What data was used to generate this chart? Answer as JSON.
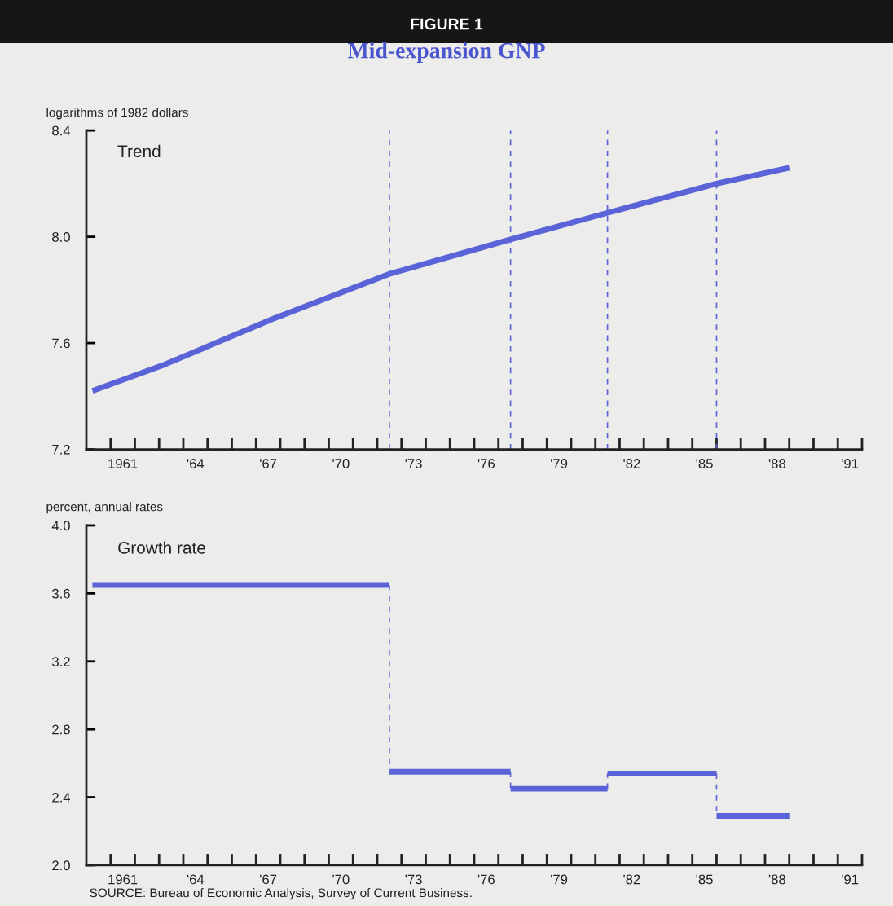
{
  "chart_data": [
    {
      "type": "line",
      "title": "Mid-expansion GNP",
      "subtitle": "Trend",
      "ylabel": "logarithms of 1982 dollars",
      "annotations": [
        "FIGURE 1"
      ],
      "series": [
        {
          "color": "#5b63d8",
          "x": [
            "1960-04",
            "1963-04",
            "1967-09",
            "1972-07",
            "1977-07",
            "1981-07",
            "1986-01",
            "1989-01"
          ],
          "values": [
            7.42,
            7.52,
            7.69,
            7.86,
            7.99,
            8.09,
            8.2,
            8.26
          ]
        }
      ],
      "xlim": [
        "1960-01-01",
        "1992-01-01"
      ],
      "xticks": [
        {
          "value": "1961-01-01",
          "label": null
        },
        {
          "value": "1961-07-01",
          "label": "1961"
        },
        {
          "value": "1962-01-01",
          "label": null
        },
        {
          "value": "1963-01-01",
          "label": null
        },
        {
          "value": "1964-01-01",
          "label": null
        },
        {
          "value": "1964-07-01",
          "label": "'64"
        },
        {
          "value": "1965-01-01",
          "label": null
        },
        {
          "value": "1966-01-01",
          "label": null
        },
        {
          "value": "1967-01-01",
          "label": null
        },
        {
          "value": "1967-07-01",
          "label": "'67"
        },
        {
          "value": "1968-01-01",
          "label": null
        },
        {
          "value": "1969-01-01",
          "label": null
        },
        {
          "value": "1970-01-01",
          "label": null
        },
        {
          "value": "1970-07-01",
          "label": "'70"
        },
        {
          "value": "1971-01-01",
          "label": null
        },
        {
          "value": "1972-01-01",
          "label": null
        },
        {
          "value": "1973-01-01",
          "label": null
        },
        {
          "value": "1973-07-01",
          "label": "'73"
        },
        {
          "value": "1974-01-01",
          "label": null
        },
        {
          "value": "1975-01-01",
          "label": null
        },
        {
          "value": "1976-01-01",
          "label": null
        },
        {
          "value": "1976-07-01",
          "label": "'76"
        },
        {
          "value": "1977-01-01",
          "label": null
        },
        {
          "value": "1978-01-01",
          "label": null
        },
        {
          "value": "1979-01-01",
          "label": null
        },
        {
          "value": "1979-07-01",
          "label": "'79"
        },
        {
          "value": "1980-01-01",
          "label": null
        },
        {
          "value": "1981-01-01",
          "label": null
        },
        {
          "value": "1982-01-01",
          "label": null
        },
        {
          "value": "1982-07-01",
          "label": "'82"
        },
        {
          "value": "1983-01-01",
          "label": null
        },
        {
          "value": "1984-01-01",
          "label": null
        },
        {
          "value": "1985-01-01",
          "label": null
        },
        {
          "value": "1985-07-01",
          "label": "'85"
        },
        {
          "value": "1986-01-01",
          "label": null
        },
        {
          "value": "1987-01-01",
          "label": null
        },
        {
          "value": "1988-01-01",
          "label": null
        },
        {
          "value": "1988-07-01",
          "label": "'88"
        },
        {
          "value": "1989-01-01",
          "label": null
        },
        {
          "value": "1990-01-01",
          "label": null
        },
        {
          "value": "1991-01-01",
          "label": null
        },
        {
          "value": "1991-07-01",
          "label": "'91"
        },
        {
          "value": "1992-01-01",
          "label": null
        }
      ],
      "ylim": [
        7.2,
        8.4
      ],
      "yticks": [
        7.2,
        7.6,
        {
          "value": 8.0,
          "label": "8.0"
        },
        8.4
      ],
      "ref_lines": [
        {
          "axis": "x",
          "value": "1972-07",
          "label": null,
          "color": "#5b63d8",
          "line_style": "dashed"
        },
        {
          "axis": "x",
          "value": "1977-07",
          "label": null,
          "color": "#5b63d8",
          "line_style": "dashed"
        },
        {
          "axis": "x",
          "value": "1981-07",
          "label": null,
          "color": "#5b63d8",
          "line_style": "dashed"
        },
        {
          "axis": "x",
          "value": "1986-01",
          "label": null,
          "color": "#5b63d8",
          "line_style": "dashed"
        }
      ],
      "grid": false,
      "legend": false
    },
    {
      "type": "step",
      "subtitle": "Growth rate",
      "ylabel": "percent, annual rates",
      "annotations": [
        "SOURCE: Bureau of Economic Analysis, Survey of Current Business."
      ],
      "series": [
        {
          "color": "#5b63d8",
          "x": [
            "1960-04",
            "1972-07",
            "1977-07",
            "1981-07",
            "1986-01",
            "1989-01"
          ],
          "values": [
            3.65,
            2.55,
            2.45,
            2.54,
            2.29,
            2.29
          ]
        }
      ],
      "xlim": [
        "1960-01-01",
        "1992-01-01"
      ],
      "xticks": [
        {
          "value": "1961-01-01",
          "label": null
        },
        {
          "value": "1961-07-01",
          "label": "1961"
        },
        {
          "value": "1962-01-01",
          "label": null
        },
        {
          "value": "1963-01-01",
          "label": null
        },
        {
          "value": "1964-01-01",
          "label": null
        },
        {
          "value": "1964-07-01",
          "label": "'64"
        },
        {
          "value": "1965-01-01",
          "label": null
        },
        {
          "value": "1966-01-01",
          "label": null
        },
        {
          "value": "1967-01-01",
          "label": null
        },
        {
          "value": "1967-07-01",
          "label": "'67"
        },
        {
          "value": "1968-01-01",
          "label": null
        },
        {
          "value": "1969-01-01",
          "label": null
        },
        {
          "value": "1970-01-01",
          "label": null
        },
        {
          "value": "1970-07-01",
          "label": "'70"
        },
        {
          "value": "1971-01-01",
          "label": null
        },
        {
          "value": "1972-01-01",
          "label": null
        },
        {
          "value": "1973-01-01",
          "label": null
        },
        {
          "value": "1973-07-01",
          "label": "'73"
        },
        {
          "value": "1974-01-01",
          "label": null
        },
        {
          "value": "1975-01-01",
          "label": null
        },
        {
          "value": "1976-01-01",
          "label": null
        },
        {
          "value": "1976-07-01",
          "label": "'76"
        },
        {
          "value": "1977-01-01",
          "label": null
        },
        {
          "value": "1978-01-01",
          "label": null
        },
        {
          "value": "1979-01-01",
          "label": null
        },
        {
          "value": "1979-07-01",
          "label": "'79"
        },
        {
          "value": "1980-01-01",
          "label": null
        },
        {
          "value": "1981-01-01",
          "label": null
        },
        {
          "value": "1982-01-01",
          "label": null
        },
        {
          "value": "1982-07-01",
          "label": "'82"
        },
        {
          "value": "1983-01-01",
          "label": null
        },
        {
          "value": "1984-01-01",
          "label": null
        },
        {
          "value": "1985-01-01",
          "label": null
        },
        {
          "value": "1985-07-01",
          "label": "'85"
        },
        {
          "value": "1986-01-01",
          "label": null
        },
        {
          "value": "1987-01-01",
          "label": null
        },
        {
          "value": "1988-01-01",
          "label": null
        },
        {
          "value": "1988-07-01",
          "label": "'88"
        },
        {
          "value": "1989-01-01",
          "label": null
        },
        {
          "value": "1990-01-01",
          "label": null
        },
        {
          "value": "1991-01-01",
          "label": null
        },
        {
          "value": "1991-07-01",
          "label": "'91"
        },
        {
          "value": "1992-01-01",
          "label": null
        }
      ],
      "ylim": [
        2.0,
        4.0
      ],
      "yticks": [
        {
          "value": 2.0,
          "label": "2.0"
        },
        2.4,
        2.8,
        3.2,
        3.6,
        {
          "value": 4.0,
          "label": "4.0"
        }
      ],
      "grid": false,
      "legend": false
    }
  ]
}
